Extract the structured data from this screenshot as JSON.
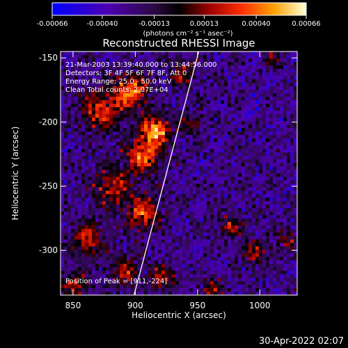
{
  "chart_data": {
    "type": "heatmap",
    "title": "Reconstructed RHESSI Image",
    "xlabel": "Heliocentric X (arcsec)",
    "ylabel": "Heliocentric Y (arcsec)",
    "x_ticks": [
      "850",
      "900",
      "950",
      "1000"
    ],
    "y_ticks": [
      "-150",
      "-200",
      "-250",
      "-300"
    ],
    "xlim": [
      840,
      1030
    ],
    "ylim": [
      -335,
      -145
    ],
    "x_tick_values": [
      850,
      900,
      950,
      1000
    ],
    "y_tick_values": [
      -150,
      -200,
      -250,
      -300
    ],
    "colorbar": {
      "ticks": [
        "-0.00066",
        "-0.00040",
        "-0.00013",
        "0.00013",
        "0.00040",
        "0.00066"
      ],
      "tick_values": [
        -0.00066,
        -0.0004,
        -0.00013,
        0.00013,
        0.0004,
        0.00066
      ],
      "range": [
        -0.00066,
        0.00066
      ],
      "units_label": "(photons cm⁻² s⁻¹ asec⁻²)"
    },
    "annotations": [
      "21-Mar-2003 13:39:40.000 to 13:44:56.000",
      "Detectors: 3F 4F 5F 6F 7F 8F, Att 0",
      "Energy Range: 25.0 - 50.0 keV",
      "Clean    Total counts: 2.07E+04"
    ],
    "peak_label": "Position of Peak = [911,-224]",
    "limb_line": [
      [
        899,
        -335
      ],
      [
        951,
        -145
      ]
    ],
    "grid": false,
    "legend": "none"
  },
  "footer": {
    "date": "30-Apr-2022 02:07"
  },
  "colors": {
    "background": "#000000",
    "text": "#ffffff",
    "limb": "#ffffff"
  }
}
